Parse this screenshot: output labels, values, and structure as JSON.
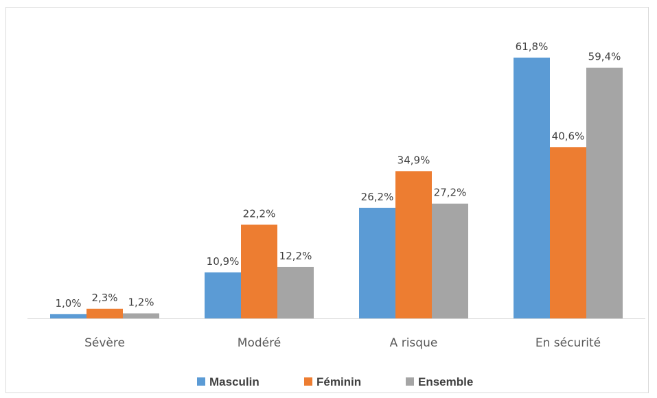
{
  "chart_data": {
    "type": "bar",
    "categories": [
      "Sévère",
      "Modéré",
      "A risque",
      "En sécurité"
    ],
    "series": [
      {
        "name": "Masculin",
        "color": "#5B9BD5",
        "values": [
          1.0,
          10.9,
          26.2,
          61.8
        ],
        "labels": [
          "1,0%",
          "10,9%",
          "26,2%",
          "61,8%"
        ]
      },
      {
        "name": "Féminin",
        "color": "#ED7D31",
        "values": [
          2.3,
          22.2,
          34.9,
          40.6
        ],
        "labels": [
          "2,3%",
          "22,2%",
          "34,9%",
          "40,6%"
        ]
      },
      {
        "name": "Ensemble",
        "color": "#A5A5A5",
        "values": [
          1.2,
          12.2,
          27.2,
          59.4
        ],
        "labels": [
          "1,2%",
          "12,2%",
          "27,2%",
          "59,4%"
        ]
      }
    ],
    "ylim": [
      0,
      70
    ],
    "legend": "bottom",
    "grid": false
  }
}
